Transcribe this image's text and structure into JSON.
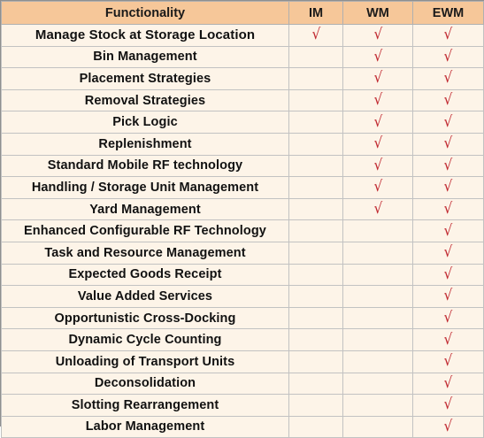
{
  "headers": {
    "functionality": "Functionality",
    "im": "IM",
    "wm": "WM",
    "ewm": "EWM"
  },
  "check_glyph": "√",
  "check_color": "#c0262e",
  "header_color": "#f6c799",
  "row_color": "#fdf4e8",
  "rows": [
    {
      "label": "Manage Stock at Storage Location",
      "im": true,
      "wm": true,
      "ewm": true
    },
    {
      "label": "Bin Management",
      "im": false,
      "wm": true,
      "ewm": true
    },
    {
      "label": "Placement Strategies",
      "im": false,
      "wm": true,
      "ewm": true
    },
    {
      "label": "Removal Strategies",
      "im": false,
      "wm": true,
      "ewm": true
    },
    {
      "label": "Pick Logic",
      "im": false,
      "wm": true,
      "ewm": true
    },
    {
      "label": "Replenishment",
      "im": false,
      "wm": true,
      "ewm": true
    },
    {
      "label": "Standard Mobile RF technology",
      "im": false,
      "wm": true,
      "ewm": true
    },
    {
      "label": "Handling / Storage Unit Management",
      "im": false,
      "wm": true,
      "ewm": true
    },
    {
      "label": "Yard Management",
      "im": false,
      "wm": true,
      "ewm": true
    },
    {
      "label": "Enhanced Configurable RF Technology",
      "im": false,
      "wm": false,
      "ewm": true
    },
    {
      "label": "Task and Resource Management",
      "im": false,
      "wm": false,
      "ewm": true
    },
    {
      "label": "Expected Goods Receipt",
      "im": false,
      "wm": false,
      "ewm": true
    },
    {
      "label": "Value Added Services",
      "im": false,
      "wm": false,
      "ewm": true
    },
    {
      "label": "Opportunistic Cross-Docking",
      "im": false,
      "wm": false,
      "ewm": true
    },
    {
      "label": "Dynamic Cycle Counting",
      "im": false,
      "wm": false,
      "ewm": true
    },
    {
      "label": "Unloading of Transport Units",
      "im": false,
      "wm": false,
      "ewm": true
    },
    {
      "label": "Deconsolidation",
      "im": false,
      "wm": false,
      "ewm": true
    },
    {
      "label": "Slotting Rearrangement",
      "im": false,
      "wm": false,
      "ewm": true
    },
    {
      "label": "Labor Management",
      "im": false,
      "wm": false,
      "ewm": true
    }
  ]
}
